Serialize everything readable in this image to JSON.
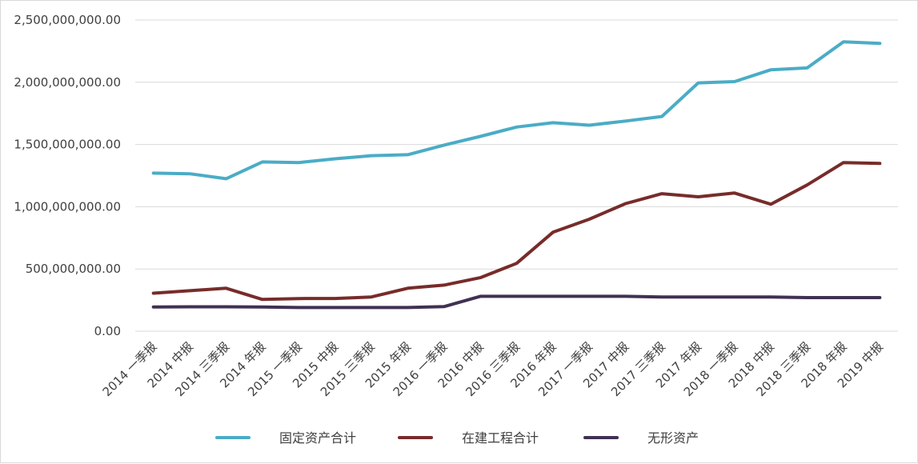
{
  "chart_data": {
    "type": "line",
    "title": "",
    "xlabel": "",
    "ylabel": "",
    "ylim": [
      0,
      2500000000
    ],
    "y_ticks": [
      0,
      500000000,
      1000000000,
      1500000000,
      2000000000,
      2500000000
    ],
    "y_tick_labels": [
      "0.00",
      "500,000,000.00",
      "1,000,000,000.00",
      "1,500,000,000.00",
      "2,000,000,000.00",
      "2,500,000,000.00"
    ],
    "grid": true,
    "legend_position": "bottom",
    "categories": [
      "2014 一季报",
      "2014 中报",
      "2014 三季报",
      "2014 年报",
      "2015 一季报",
      "2015 中报",
      "2015 三季报",
      "2015 年报",
      "2016 一季报",
      "2016 中报",
      "2016 三季报",
      "2016 年报",
      "2017 一季报",
      "2017 中报",
      "2017 三季报",
      "2017 年报",
      "2018 一季报",
      "2018 中报",
      "2018 三季报",
      "2018 年报",
      "2019 中报"
    ],
    "series": [
      {
        "name": "固定资产合计",
        "color": "#4BACC6",
        "values": [
          1270000000,
          1265000000,
          1225000000,
          1360000000,
          1355000000,
          1385000000,
          1410000000,
          1418000000,
          1495000000,
          1565000000,
          1640000000,
          1675000000,
          1655000000,
          1688000000,
          1725000000,
          1995000000,
          2005000000,
          2100000000,
          2115000000,
          2325000000,
          2312000000
        ]
      },
      {
        "name": "在建工程合计",
        "color": "#772C2A",
        "values": [
          305000000,
          325000000,
          345000000,
          255000000,
          262000000,
          263000000,
          275000000,
          345000000,
          370000000,
          430000000,
          545000000,
          795000000,
          900000000,
          1025000000,
          1105000000,
          1080000000,
          1110000000,
          1020000000,
          1175000000,
          1355000000,
          1348000000
        ]
      },
      {
        "name": "无形资产",
        "color": "#403152",
        "values": [
          195000000,
          196000000,
          196000000,
          195000000,
          190000000,
          190000000,
          190000000,
          190000000,
          197000000,
          280000000,
          280000000,
          280000000,
          280000000,
          280000000,
          275000000,
          275000000,
          275000000,
          275000000,
          270000000,
          270000000,
          270000000
        ]
      }
    ]
  }
}
